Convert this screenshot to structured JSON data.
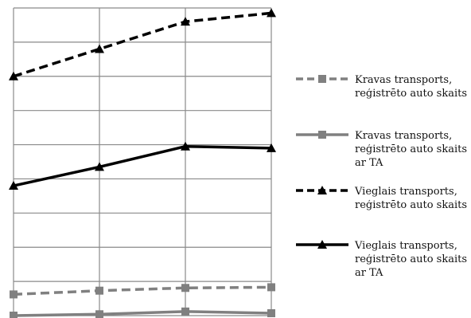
{
  "chart_data": {
    "type": "line",
    "categories": [
      "",
      "",
      "",
      ""
    ],
    "ylim": [
      0,
      9
    ],
    "grid": true,
    "legend_position": "right",
    "series": [
      {
        "name": "Kravas transports, reģistrēto auto skaits",
        "values": [
          0.62,
          0.73,
          0.81,
          0.83
        ],
        "color": "#808080",
        "dashed": true,
        "marker": "square",
        "legend_lines": [
          "Kravas transports,",
          "reģistrēto auto skaits"
        ]
      },
      {
        "name": "Kravas transports, reģistrēto auto skaits ar TA",
        "values": [
          0.0,
          0.04,
          0.12,
          0.07
        ],
        "color": "#808080",
        "dashed": false,
        "marker": "square",
        "legend_lines": [
          "Kravas transports,",
          "reģistrēto auto skaits",
          "ar TA"
        ]
      },
      {
        "name": "Vieglais transports, reģistrēto auto skaits",
        "values": [
          7.0,
          7.8,
          8.6,
          8.85
        ],
        "color": "#000000",
        "dashed": true,
        "marker": "triangle",
        "legend_lines": [
          "Vieglais transports,",
          "reģistrēto auto skaits"
        ]
      },
      {
        "name": "Vieglais transports, reģistrēto auto skaits ar TA",
        "values": [
          3.8,
          4.35,
          4.95,
          4.9
        ],
        "color": "#000000",
        "dashed": false,
        "marker": "triangle",
        "legend_lines": [
          "Vieglais transports,",
          "reģistrēto auto skaits",
          "ar TA"
        ]
      }
    ]
  }
}
